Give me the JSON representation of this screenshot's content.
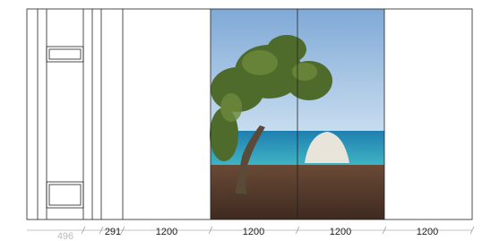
{
  "dimensions": [
    "496",
    "291",
    "1200",
    "1200",
    "1200",
    "1200"
  ]
}
